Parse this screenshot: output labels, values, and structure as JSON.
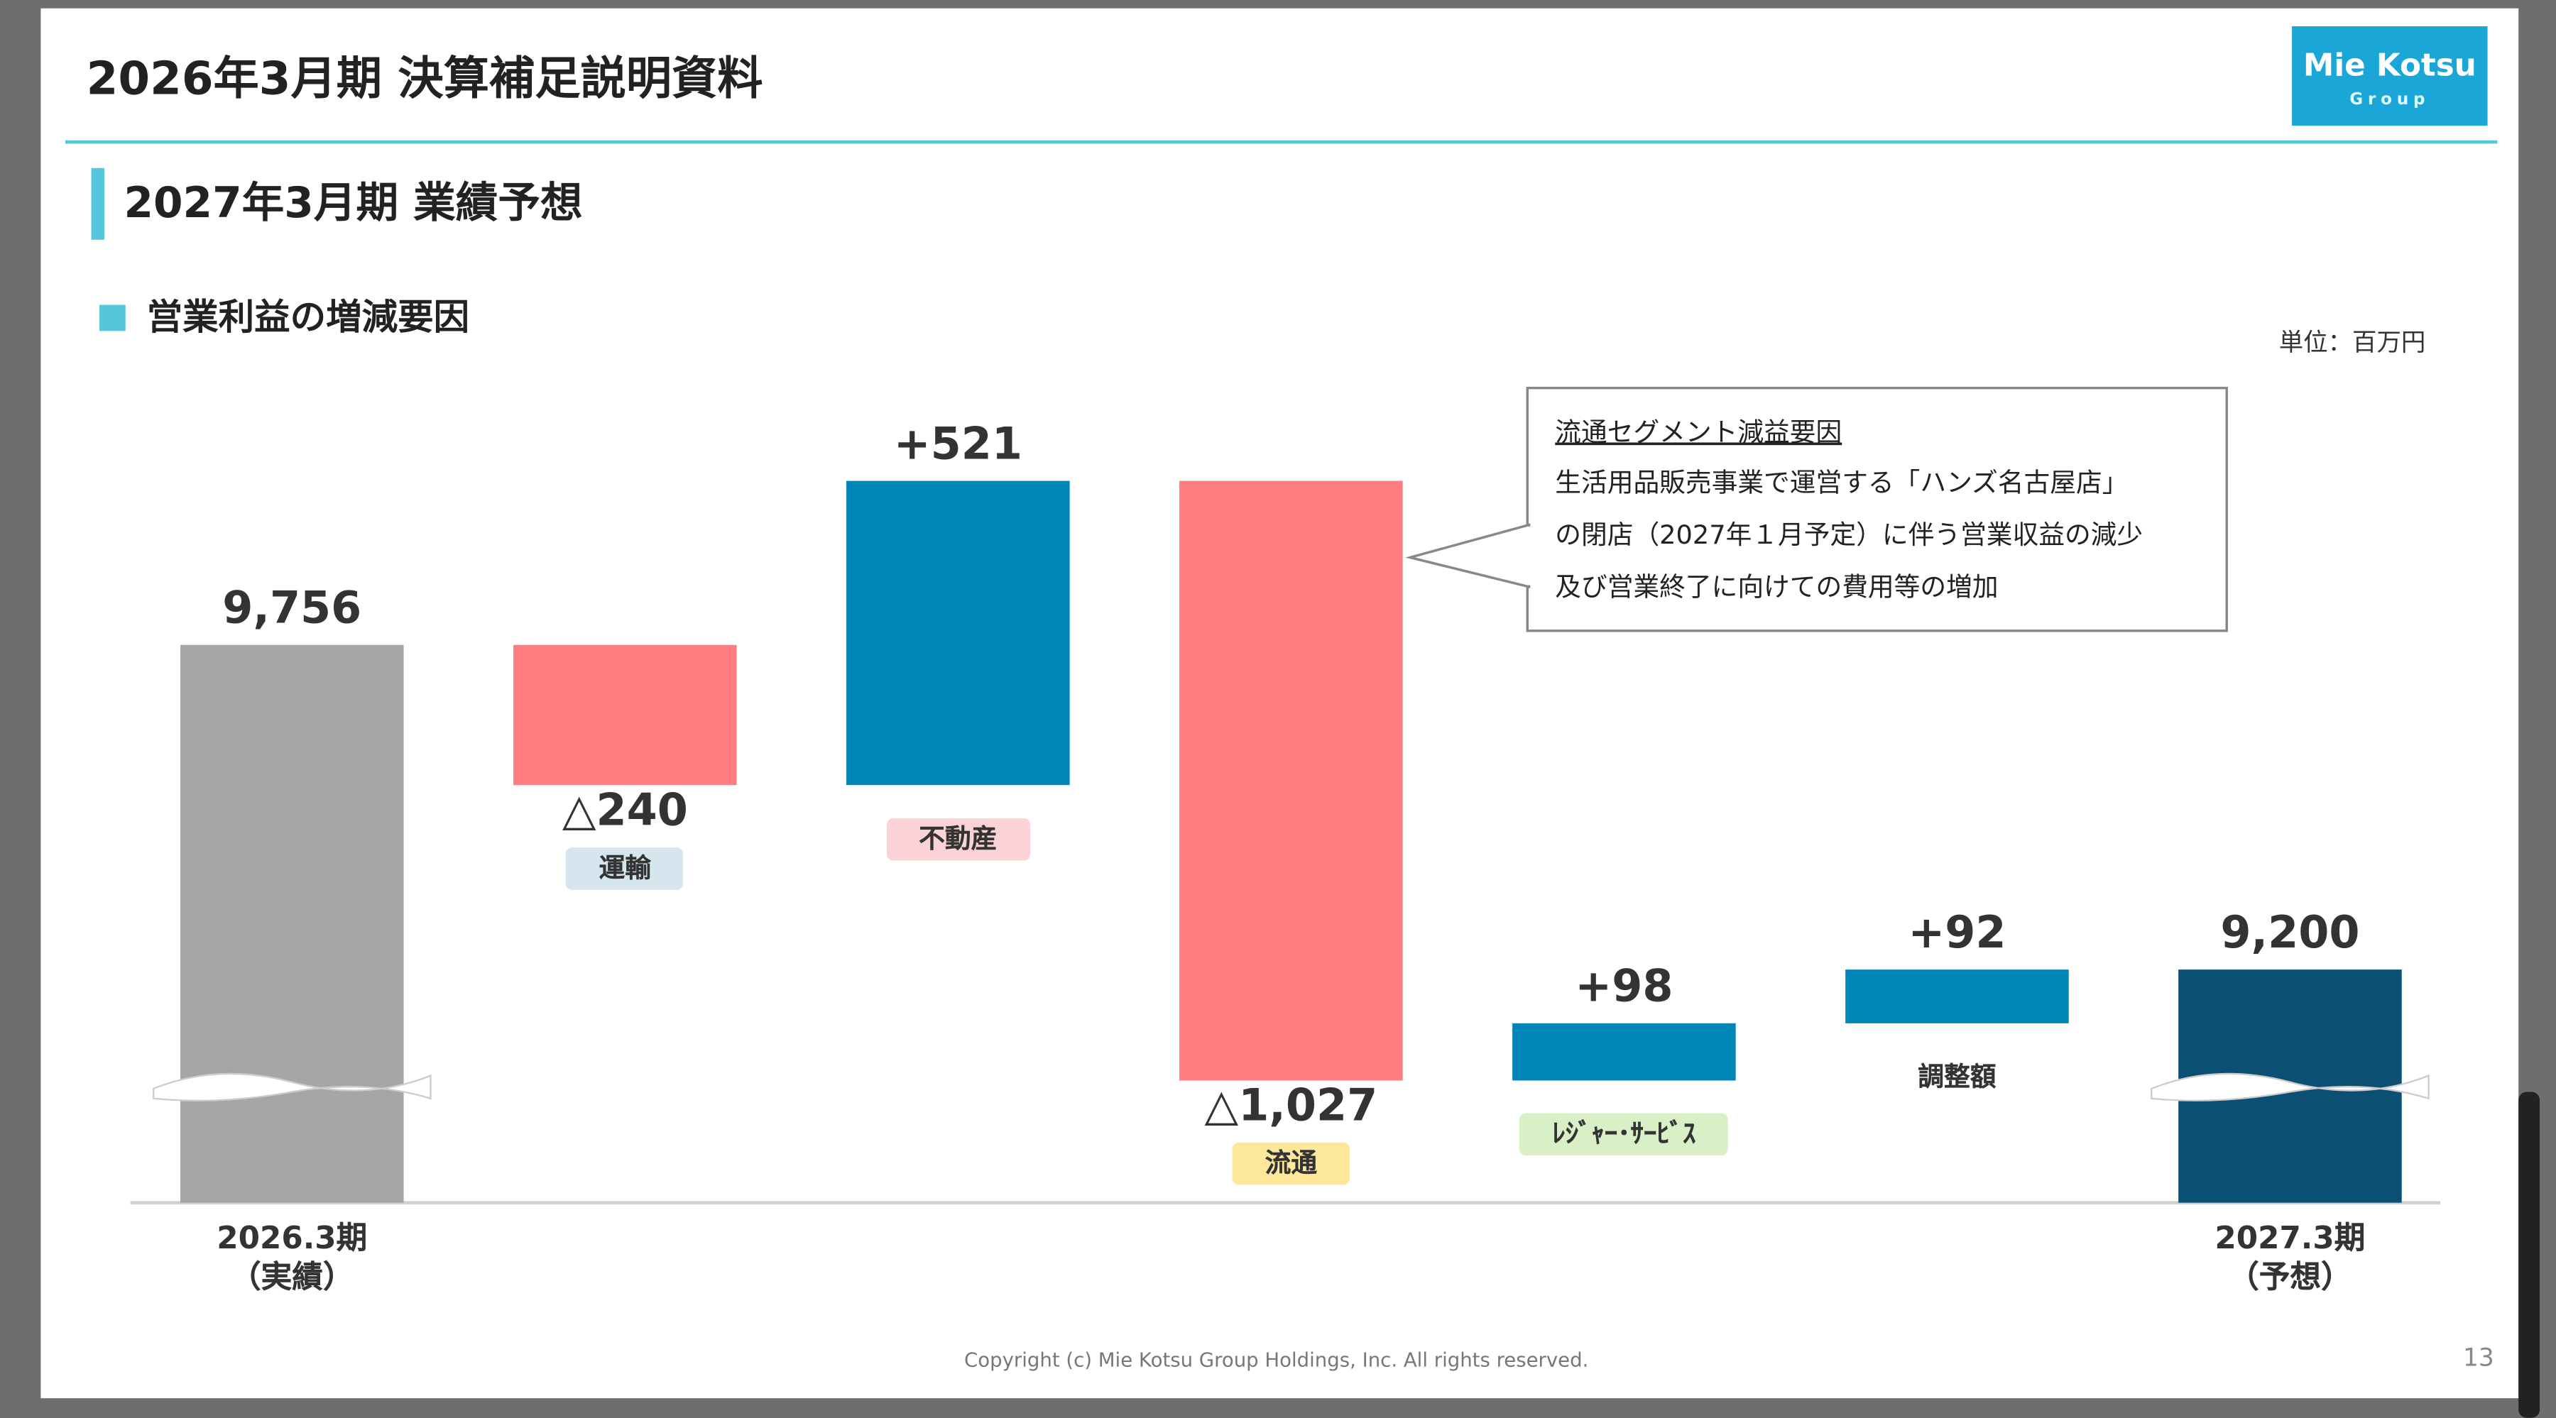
{
  "header": {
    "title": "2026年3月期 決算補足説明資料",
    "logo": "Mie Kotsu",
    "logo_sub": "Group",
    "section": "2027年3月期 業績予想"
  },
  "chart_data": {
    "type": "waterfall",
    "title": "営業利益の増減要因",
    "unit": "単位：百万円",
    "categories": [
      "2026.3期\n（実績）",
      "運輸",
      "不動産",
      "流通",
      "ﾚｼﾞｬｰ･ｻｰﾋﾞｽ",
      "調整額",
      "2027.3期\n（予想）"
    ],
    "values": [
      9756,
      -240,
      521,
      -1027,
      98,
      92,
      9200
    ],
    "value_labels": [
      "9,756",
      "△240",
      "+521",
      "△1,027",
      "+98",
      "+92",
      "9,200"
    ],
    "measure": [
      "absolute",
      "relative",
      "relative",
      "relative",
      "relative",
      "relative",
      "absolute"
    ],
    "colors": [
      "#a6a6a6",
      "#ff7c80",
      "#0085b8",
      "#ff7c80",
      "#0085b8",
      "#0085b8",
      "#0b4f73"
    ],
    "label_backgrounds": [
      null,
      "#d6e6ee",
      "#fbd3d6",
      "#fde79b",
      "#d8efc7",
      null,
      null
    ],
    "annotation": {
      "title": "流通セグメント減益要因",
      "lines": [
        "生活用品販売事業で運営する「ハンズ名古屋店」",
        "の閉店（2027年１月予定）に伴う営業収益の減少",
        "及び営業終了に向けての費用等の増加"
      ]
    }
  },
  "footer": {
    "copyright": "Copyright (c) Mie Kotsu Group Holdings, Inc. All rights reserved.",
    "page": "13"
  }
}
